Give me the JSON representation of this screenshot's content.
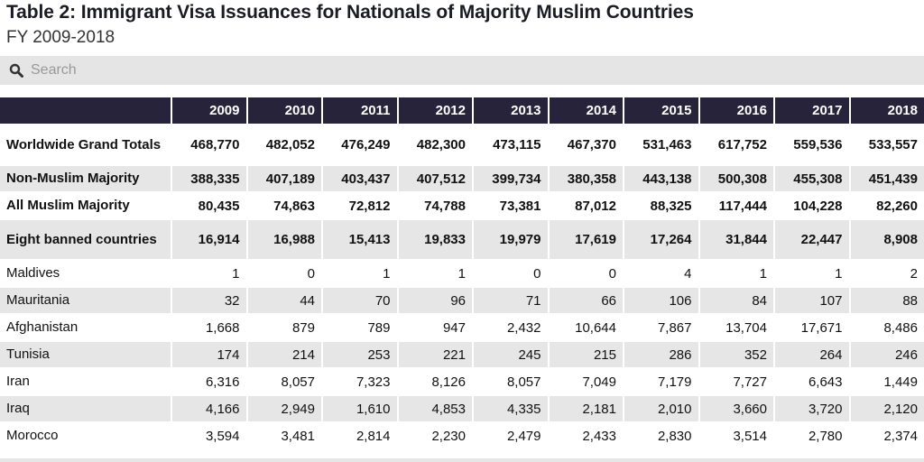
{
  "title": "Table 2: Immigrant Visa Issuances for Nationals of Majority Muslim Countries",
  "subtitle": "FY 2009-2018",
  "search": {
    "placeholder": "Search",
    "value": "",
    "icon": "search-icon"
  },
  "table": {
    "columns": [
      "",
      "2009",
      "2010",
      "2011",
      "2012",
      "2013",
      "2014",
      "2015",
      "2016",
      "2017",
      "2018"
    ],
    "rows": [
      {
        "label": "Worldwide Grand Totals",
        "bold": true,
        "values": [
          "468,770",
          "482,052",
          "476,249",
          "482,300",
          "473,115",
          "467,370",
          "531,463",
          "617,752",
          "559,536",
          "533,557"
        ]
      },
      {
        "label": "Non-Muslim Majority",
        "bold": true,
        "values": [
          "388,335",
          "407,189",
          "403,437",
          "407,512",
          "399,734",
          "380,358",
          "443,138",
          "500,308",
          "455,308",
          "451,439"
        ]
      },
      {
        "label": "All Muslim Majority",
        "bold": true,
        "values": [
          "80,435",
          "74,863",
          "72,812",
          "74,788",
          "73,381",
          "87,012",
          "88,325",
          "117,444",
          "104,228",
          "82,260"
        ]
      },
      {
        "label": "Eight banned countries",
        "bold": true,
        "values": [
          "16,914",
          "16,988",
          "15,413",
          "19,833",
          "19,979",
          "17,619",
          "17,264",
          "31,844",
          "22,447",
          "8,908"
        ]
      },
      {
        "label": "Maldives",
        "bold": false,
        "values": [
          "1",
          "0",
          "1",
          "1",
          "0",
          "0",
          "4",
          "1",
          "1",
          "2"
        ]
      },
      {
        "label": "Mauritania",
        "bold": false,
        "values": [
          "32",
          "44",
          "70",
          "96",
          "71",
          "66",
          "106",
          "84",
          "107",
          "88"
        ]
      },
      {
        "label": "Afghanistan",
        "bold": false,
        "values": [
          "1,668",
          "879",
          "789",
          "947",
          "2,432",
          "10,644",
          "7,867",
          "13,704",
          "17,671",
          "8,486"
        ]
      },
      {
        "label": "Tunisia",
        "bold": false,
        "values": [
          "174",
          "214",
          "253",
          "221",
          "245",
          "215",
          "286",
          "352",
          "264",
          "246"
        ]
      },
      {
        "label": "Iran",
        "bold": false,
        "values": [
          "6,316",
          "8,057",
          "7,323",
          "8,126",
          "8,057",
          "7,049",
          "7,179",
          "7,727",
          "6,643",
          "1,449"
        ]
      },
      {
        "label": "Iraq",
        "bold": false,
        "values": [
          "4,166",
          "2,949",
          "1,610",
          "4,853",
          "4,335",
          "2,181",
          "2,010",
          "3,660",
          "3,720",
          "2,120"
        ]
      },
      {
        "label": "Morocco",
        "bold": false,
        "values": [
          "3,594",
          "3,481",
          "2,814",
          "2,230",
          "2,479",
          "2,433",
          "2,830",
          "3,514",
          "2,780",
          "2,374"
        ]
      }
    ]
  },
  "colors": {
    "header_bg": "#27233a",
    "stripe": "#e6e6e6",
    "search_bg": "#e5e5e5"
  }
}
